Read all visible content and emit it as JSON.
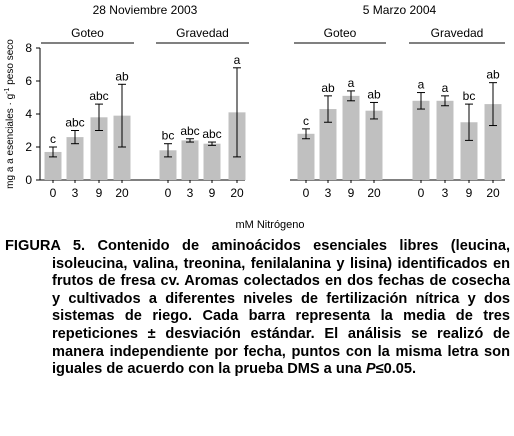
{
  "chart_data": [
    {
      "type": "bar",
      "title": "28 Noviembre 2003",
      "ylabel": [
        "mg a a esenciales · g",
        "-1",
        " peso seco"
      ],
      "xlabel": "mM Nitrógeno",
      "ylim": [
        0,
        8
      ],
      "yticks": [
        0,
        2,
        4,
        6,
        8
      ],
      "color": "#c0c0c0",
      "groups": [
        {
          "name": "Goteo",
          "categories": [
            "0",
            "3",
            "9",
            "20"
          ],
          "values": [
            1.7,
            2.6,
            3.8,
            3.9
          ],
          "errors": [
            0.3,
            0.4,
            0.8,
            1.9
          ],
          "letters": [
            "c",
            "abc",
            "abc",
            "ab"
          ]
        },
        {
          "name": "Gravedad",
          "categories": [
            "0",
            "3",
            "9",
            "20"
          ],
          "values": [
            1.8,
            2.4,
            2.2,
            4.1
          ],
          "errors": [
            0.4,
            0.1,
            0.1,
            2.7
          ],
          "letters": [
            "bc",
            "abc",
            "abc",
            "a"
          ]
        }
      ]
    },
    {
      "type": "bar",
      "title": "5 Marzo 2004",
      "ylim": [
        0,
        8
      ],
      "color": "#c0c0c0",
      "groups": [
        {
          "name": "Goteo",
          "categories": [
            "0",
            "3",
            "9",
            "20"
          ],
          "values": [
            2.8,
            4.3,
            5.1,
            4.2
          ],
          "errors": [
            0.3,
            0.8,
            0.3,
            0.5
          ],
          "letters": [
            "c",
            "ab",
            "a",
            "ab"
          ]
        },
        {
          "name": "Gravedad",
          "categories": [
            "0",
            "3",
            "9",
            "20"
          ],
          "values": [
            4.8,
            4.8,
            3.5,
            4.6
          ],
          "errors": [
            0.5,
            0.3,
            1.1,
            1.3
          ],
          "letters": [
            "a",
            "a",
            "bc",
            "ab"
          ]
        }
      ]
    }
  ],
  "caption": {
    "label": "FIGURA 5.",
    "text": " Contenido de aminoácidos esenciales libres (leucina, isoleucina, valina, treonina, fenilalanina y lisina) identificados en frutos de fresa cv. Aromas colectados en dos fechas de cosecha y cultivados a diferentes niveles de fertilización nítrica y dos sistemas de riego. Cada barra representa la media de tres repeticiones ± desviación estándar. El análisis se realizó de manera independiente por fecha, puntos con la misma letra son iguales de acuerdo con la prueba DMS a una ",
    "p": "P",
    "end": "≤0.05."
  }
}
